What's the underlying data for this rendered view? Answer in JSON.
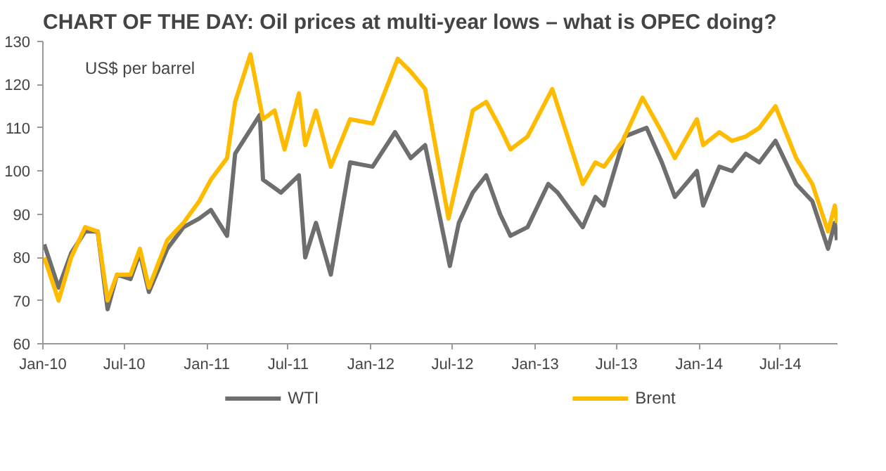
{
  "chart_data": {
    "type": "line",
    "title": "CHART OF THE DAY: Oil prices at multi-year lows – what is OPEC doing?",
    "annotations": [
      "US$ per barrel"
    ],
    "ylim": [
      60,
      130
    ],
    "yticks": [
      60,
      70,
      80,
      90,
      100,
      110,
      120,
      130
    ],
    "xlim": [
      "2010-01-01",
      "2014-11-05"
    ],
    "xticks": [
      {
        "value": "2010-01-01",
        "label": "Jan-10"
      },
      {
        "value": "2010-07-01",
        "label": "Jul-10"
      },
      {
        "value": "2011-01-01",
        "label": "Jan-11"
      },
      {
        "value": "2011-07-01",
        "label": "Jul-11"
      },
      {
        "value": "2012-01-01",
        "label": "Jan-12"
      },
      {
        "value": "2012-07-01",
        "label": "Jul-12"
      },
      {
        "value": "2013-01-01",
        "label": "Jan-13"
      },
      {
        "value": "2013-07-01",
        "label": "Jul-13"
      },
      {
        "value": "2014-01-01",
        "label": "Jan-14"
      },
      {
        "value": "2014-07-01",
        "label": "Jul-14"
      }
    ],
    "grid": false,
    "legend": "bottom",
    "line_style": "solid",
    "series": [
      {
        "name": "WTI",
        "color": "#6e6e6e",
        "x": [
          "2010-01-04",
          "2010-02-05",
          "2010-03-05",
          "2010-04-05",
          "2010-05-03",
          "2010-05-25",
          "2010-06-15",
          "2010-07-15",
          "2010-08-05",
          "2010-08-25",
          "2010-10-05",
          "2010-11-10",
          "2010-12-15",
          "2011-01-10",
          "2011-02-15",
          "2011-03-05",
          "2011-04-29",
          "2011-05-06",
          "2011-06-15",
          "2011-07-25",
          "2011-08-08",
          "2011-09-01",
          "2011-10-04",
          "2011-11-16",
          "2012-01-05",
          "2012-02-24",
          "2012-03-30",
          "2012-05-01",
          "2012-06-25",
          "2012-07-15",
          "2012-08-15",
          "2012-09-14",
          "2012-10-15",
          "2012-11-07",
          "2012-12-15",
          "2013-01-30",
          "2013-02-20",
          "2013-04-17",
          "2013-05-15",
          "2013-06-03",
          "2013-07-19",
          "2013-09-06",
          "2013-10-10",
          "2013-11-08",
          "2013-12-27",
          "2014-01-10",
          "2014-02-15",
          "2014-03-15",
          "2014-04-15",
          "2014-05-15",
          "2014-06-20",
          "2014-08-05",
          "2014-09-10",
          "2014-10-15",
          "2014-10-30",
          "2014-11-04"
        ],
        "values": [
          83,
          73,
          81,
          86,
          86,
          68,
          76,
          75,
          81,
          72,
          82,
          87,
          89,
          91,
          85,
          104,
          113,
          98,
          95,
          99,
          80,
          88,
          76,
          102,
          101,
          109,
          103,
          106,
          78,
          88,
          95,
          99,
          90,
          85,
          87,
          97,
          95,
          87,
          94,
          92,
          108,
          110,
          102,
          94,
          100,
          92,
          101,
          100,
          104,
          102,
          107,
          97,
          93,
          82,
          88,
          84
        ]
      },
      {
        "name": "Brent",
        "color": "#ffbb00",
        "x": [
          "2010-01-04",
          "2010-02-05",
          "2010-03-05",
          "2010-04-05",
          "2010-05-03",
          "2010-05-25",
          "2010-06-15",
          "2010-07-15",
          "2010-08-05",
          "2010-08-25",
          "2010-10-05",
          "2010-11-10",
          "2010-12-15",
          "2011-01-10",
          "2011-02-15",
          "2011-03-05",
          "2011-04-08",
          "2011-05-06",
          "2011-06-01",
          "2011-06-23",
          "2011-07-25",
          "2011-08-08",
          "2011-09-01",
          "2011-10-04",
          "2011-11-16",
          "2012-01-05",
          "2012-03-01",
          "2012-03-30",
          "2012-05-01",
          "2012-06-22",
          "2012-08-15",
          "2012-09-14",
          "2012-10-15",
          "2012-11-07",
          "2012-12-15",
          "2013-02-08",
          "2013-04-17",
          "2013-05-15",
          "2013-06-03",
          "2013-07-15",
          "2013-08-28",
          "2013-10-10",
          "2013-11-08",
          "2013-12-27",
          "2014-01-10",
          "2014-02-15",
          "2014-03-15",
          "2014-04-15",
          "2014-05-15",
          "2014-06-20",
          "2014-08-05",
          "2014-09-10",
          "2014-10-15",
          "2014-10-30",
          "2014-11-04"
        ],
        "values": [
          80,
          70,
          80,
          87,
          86,
          70,
          76,
          76,
          82,
          73,
          84,
          88,
          93,
          98,
          103,
          116,
          127,
          112,
          114,
          105,
          118,
          106,
          114,
          101,
          112,
          111,
          126,
          123,
          119,
          89,
          114,
          116,
          110,
          105,
          108,
          119,
          97,
          102,
          101,
          107,
          117,
          109,
          103,
          112,
          106,
          109,
          107,
          108,
          110,
          115,
          103,
          97,
          86,
          92,
          88
        ]
      }
    ]
  }
}
